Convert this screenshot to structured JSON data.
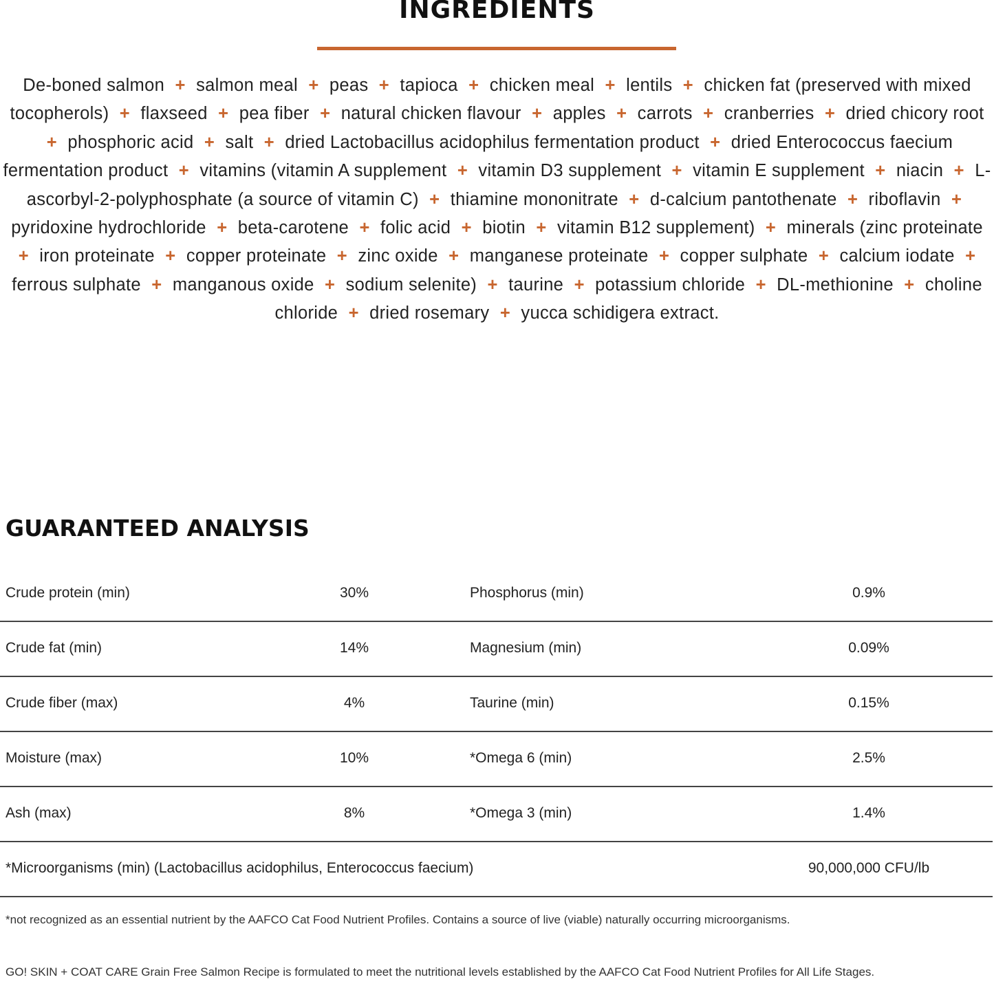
{
  "ingredients": {
    "title": "INGREDIENTS",
    "accent_color": "#C8662F",
    "separator": "+",
    "items": [
      "De-boned salmon",
      "salmon meal",
      "peas",
      "tapioca",
      "chicken meal",
      "lentils",
      "chicken fat (preserved with mixed tocopherols)",
      "flaxseed",
      "pea fiber",
      "natural chicken flavour",
      "apples",
      "carrots",
      "cranberries",
      "dried chicory root",
      "phosphoric acid",
      "salt",
      "dried Lactobacillus acidophilus fermentation product",
      "dried Enterococcus faecium fermentation product",
      "vitamins (vitamin A supplement",
      "vitamin D3 supplement",
      "vitamin E supplement",
      "niacin",
      "L-ascorbyl-2-polyphosphate (a source of vitamin C)",
      "thiamine mononitrate",
      "d-calcium pantothenate",
      "riboflavin",
      "pyridoxine hydrochloride",
      "beta-carotene",
      "folic acid",
      "biotin",
      "vitamin B12 supplement)",
      "minerals (zinc proteinate",
      "iron proteinate",
      "copper proteinate",
      "zinc oxide",
      "manganese proteinate",
      "copper sulphate",
      "calcium iodate",
      "ferrous sulphate",
      "manganous oxide",
      "sodium selenite)",
      "taurine",
      "potassium chloride",
      "DL-methionine",
      "choline chloride",
      "dried rosemary",
      "yucca schidigera extract."
    ]
  },
  "analysis": {
    "title": "GUARANTEED ANALYSIS",
    "rows": [
      {
        "label": "Crude protein (min)",
        "value": "30%",
        "label2": "Phosphorus (min)",
        "value2": "0.9%"
      },
      {
        "label": "Crude fat (min)",
        "value": "14%",
        "label2": "Magnesium (min)",
        "value2": "0.09%"
      },
      {
        "label": "Crude fiber (max)",
        "value": "4%",
        "label2": "Taurine (min)",
        "value2": "0.15%"
      },
      {
        "label": "Moisture (max)",
        "value": "10%",
        "label2": "*Omega 6 (min)",
        "value2": "2.5%"
      },
      {
        "label": "Ash (max)",
        "value": "8%",
        "label2": "*Omega 3 (min)",
        "value2": "1.4%"
      }
    ],
    "micro": {
      "label": "*Microorganisms (min) (Lactobacillus acidophilus, Enterococcus faecium)",
      "value": "90,000,000 CFU/lb"
    }
  },
  "footnote": "*not recognized as an essential nutrient by the AAFCO Cat Food Nutrient Profiles. Contains a source of live (viable) naturally occurring microorganisms.",
  "statement": "GO! SKIN + COAT CARE Grain Free Salmon Recipe is formulated to meet the nutritional levels established by the AAFCO Cat Food Nutrient Profiles for All Life Stages."
}
